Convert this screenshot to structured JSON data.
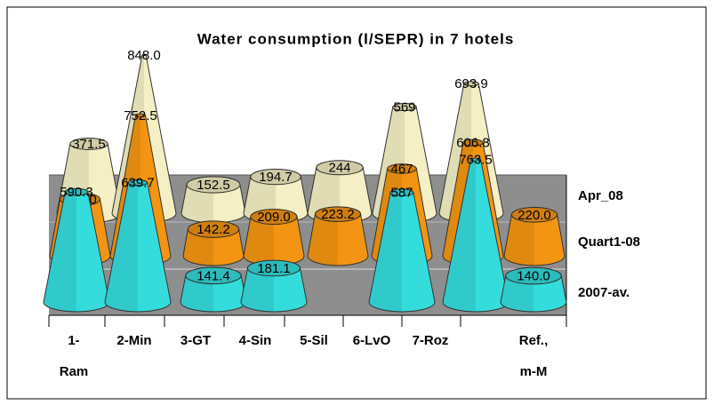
{
  "chart_data": {
    "type": "cone3d",
    "title": "Water consumption (l/SEPR) in 7 hotels",
    "categories": [
      "1- Ram",
      "2-Min",
      "3-GT",
      "4-Sin",
      "5-Sil",
      "6-LvO",
      "7-Roz",
      "Ref., m-M"
    ],
    "series": [
      {
        "name": "Apr_08",
        "color": "#f4efc4",
        "values": [
          371.5,
          848.0,
          152.5,
          194.7,
          244,
          569,
          693.9,
          null
        ],
        "value_labels": [
          "371.5",
          "848.0",
          "152.5",
          "194.7",
          "244",
          "569",
          "693.9",
          null
        ]
      },
      {
        "name": "Quart1-08",
        "color": "#f39512",
        "values": [
          303.0,
          752.5,
          142.2,
          209.0,
          223.2,
          467,
          606.8,
          220.0
        ],
        "value_labels": [
          "303.0",
          "752.5",
          "142.2",
          "209.0",
          "223.2",
          "467",
          "606.8",
          "220.0"
        ]
      },
      {
        "name": "2007-av.",
        "color": "#35dcdc",
        "values": [
          590.3,
          639.7,
          141.4,
          181.1,
          null,
          587,
          763.5,
          140.0
        ],
        "value_labels": [
          "590.3",
          "639.7",
          "141.4",
          "181.1",
          null,
          "587",
          "763.5",
          "140.0"
        ]
      }
    ]
  }
}
